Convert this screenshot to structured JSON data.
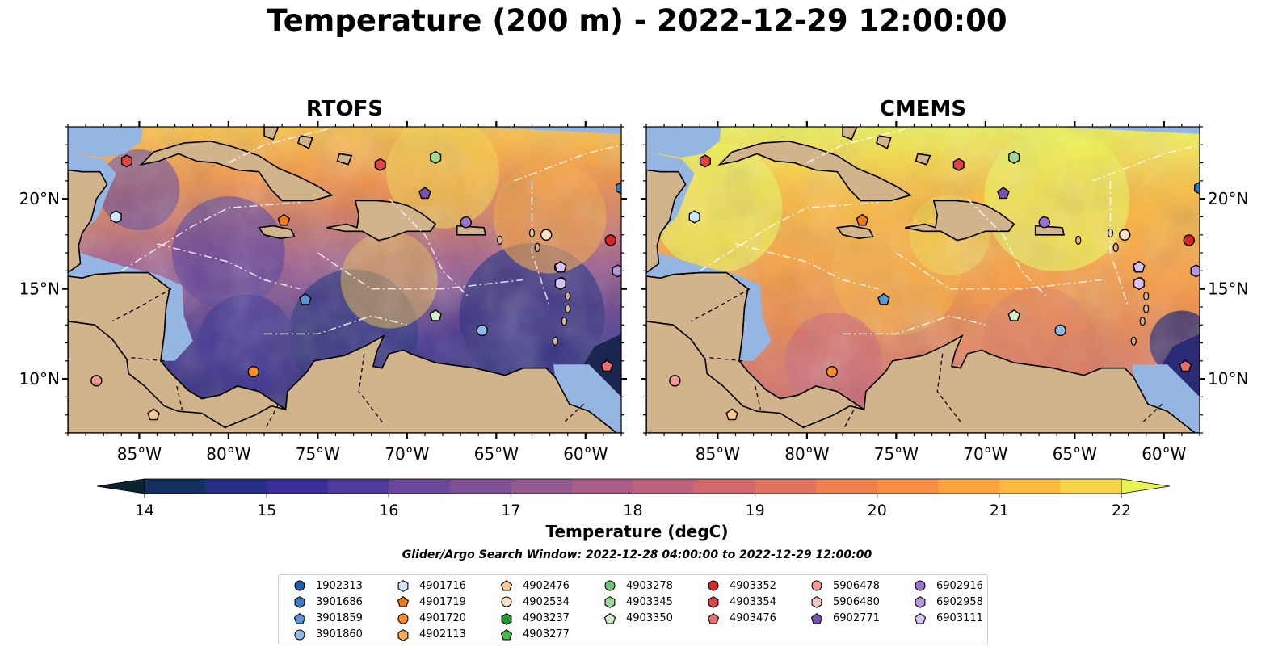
{
  "title": "Temperature (200 m) - 2022-12-29 12:00:00",
  "panels": [
    {
      "id": "rtofs",
      "title": "RTOFS"
    },
    {
      "id": "cmems",
      "title": "CMEMS"
    }
  ],
  "map": {
    "lon_range": [
      -89,
      -58
    ],
    "lat_range": [
      7,
      24
    ],
    "lon_ticks": [
      {
        "value": -85,
        "label": "85°W"
      },
      {
        "value": -80,
        "label": "80°W"
      },
      {
        "value": -75,
        "label": "75°W"
      },
      {
        "value": -70,
        "label": "70°W"
      },
      {
        "value": -65,
        "label": "65°W"
      },
      {
        "value": -60,
        "label": "60°W"
      }
    ],
    "lat_ticks": [
      {
        "value": 20,
        "label": "20°N"
      },
      {
        "value": 15,
        "label": "15°N"
      },
      {
        "value": 10,
        "label": "10°N"
      }
    ],
    "colors": {
      "land": "#d2b48c",
      "shelf": "#95b6e3",
      "cold": "#0b1d2e",
      "warm": "#f8a840",
      "hot": "#e8f550",
      "mid": "#6a4a9a"
    }
  },
  "colorbar": {
    "min": 14,
    "max": 22,
    "step": 0.5,
    "ticks": [
      {
        "value": 14,
        "label": "14"
      },
      {
        "value": 15,
        "label": "15"
      },
      {
        "value": 16,
        "label": "16"
      },
      {
        "value": 17,
        "label": "17"
      },
      {
        "value": 18,
        "label": "18"
      },
      {
        "value": 19,
        "label": "19"
      },
      {
        "value": 20,
        "label": "20"
      },
      {
        "value": 21,
        "label": "21"
      },
      {
        "value": 22,
        "label": "22"
      }
    ],
    "colors": [
      "#0b2233",
      "#13305e",
      "#252f86",
      "#3c2e99",
      "#513b9a",
      "#6a4799",
      "#7e5197",
      "#935a92",
      "#a85e87",
      "#bd637b",
      "#d0686c",
      "#e07260",
      "#ee7f4f",
      "#f88f45",
      "#fba43e",
      "#fbba3f",
      "#f6d549",
      "#e8f550"
    ],
    "label": "Temperature (degC)"
  },
  "search_window": "Glider/Argo Search Window: 2022-12-28 04:00:00 to 2022-12-29 12:00:00",
  "legend": [
    {
      "id": "1902313",
      "shape": "circle",
      "color": "#1f5fa8"
    },
    {
      "id": "3901686",
      "shape": "hexagon",
      "color": "#3a7cc6"
    },
    {
      "id": "3901859",
      "shape": "pentagon",
      "color": "#5b96d6"
    },
    {
      "id": "3901860",
      "shape": "circle",
      "color": "#8fbbea"
    },
    {
      "id": "4901716",
      "shape": "hexagon",
      "color": "#cfe4f7"
    },
    {
      "id": "4901719",
      "shape": "pentagon",
      "color": "#f07a10"
    },
    {
      "id": "4901720",
      "shape": "circle",
      "color": "#f68f2a"
    },
    {
      "id": "4902113",
      "shape": "hexagon",
      "color": "#f9ab5d"
    },
    {
      "id": "4902476",
      "shape": "pentagon",
      "color": "#fbc98f"
    },
    {
      "id": "4902534",
      "shape": "circle",
      "color": "#fde2c6"
    },
    {
      "id": "4903237",
      "shape": "hexagon",
      "color": "#1f9a2a"
    },
    {
      "id": "4903277",
      "shape": "pentagon",
      "color": "#4cb84c"
    },
    {
      "id": "4903278",
      "shape": "circle",
      "color": "#74c476"
    },
    {
      "id": "4903345",
      "shape": "hexagon",
      "color": "#a1d99b"
    },
    {
      "id": "4903350",
      "shape": "pentagon",
      "color": "#d2f0c8"
    },
    {
      "id": "4903352",
      "shape": "circle",
      "color": "#d62728"
    },
    {
      "id": "4903354",
      "shape": "hexagon",
      "color": "#e04546"
    },
    {
      "id": "4903476",
      "shape": "pentagon",
      "color": "#ea6d6b"
    },
    {
      "id": "5906478",
      "shape": "circle",
      "color": "#f19a98"
    },
    {
      "id": "5906480",
      "shape": "hexagon",
      "color": "#f8c8c6"
    },
    {
      "id": "6902771",
      "shape": "pentagon",
      "color": "#7a52b3"
    },
    {
      "id": "6902916",
      "shape": "circle",
      "color": "#9a72cf"
    },
    {
      "id": "6902958",
      "shape": "hexagon",
      "color": "#b797df"
    },
    {
      "id": "6903111",
      "shape": "pentagon",
      "color": "#d8c2f0"
    }
  ],
  "floats": [
    {
      "lon": -85.7,
      "lat": 22.1,
      "shape": "hexagon",
      "color": "#e04546"
    },
    {
      "lon": -86.3,
      "lat": 19.0,
      "shape": "hexagon",
      "color": "#cfe4f7"
    },
    {
      "lon": -76.9,
      "lat": 18.8,
      "shape": "pentagon",
      "color": "#f07a10"
    },
    {
      "lon": -71.5,
      "lat": 21.9,
      "shape": "hexagon",
      "color": "#e04546"
    },
    {
      "lon": -68.4,
      "lat": 22.3,
      "shape": "hexagon",
      "color": "#a1d99b"
    },
    {
      "lon": -69.0,
      "lat": 20.3,
      "shape": "pentagon",
      "color": "#7a52b3"
    },
    {
      "lon": -66.7,
      "lat": 18.7,
      "shape": "circle",
      "color": "#9a72cf"
    },
    {
      "lon": -62.2,
      "lat": 18.0,
      "shape": "circle",
      "color": "#fde2c6"
    },
    {
      "lon": -61.4,
      "lat": 16.2,
      "shape": "pentagon",
      "color": "#d8c2f0"
    },
    {
      "lon": -61.4,
      "lat": 15.3,
      "shape": "hexagon",
      "color": "#d8c2f0"
    },
    {
      "lon": -58.6,
      "lat": 17.7,
      "shape": "circle",
      "color": "#d62728"
    },
    {
      "lon": -58.2,
      "lat": 16.0,
      "shape": "hexagon",
      "color": "#b797df"
    },
    {
      "lon": -58.0,
      "lat": 20.6,
      "shape": "hexagon",
      "color": "#3a7cc6"
    },
    {
      "lon": -75.7,
      "lat": 14.4,
      "shape": "pentagon",
      "color": "#5b96d6"
    },
    {
      "lon": -68.4,
      "lat": 13.5,
      "shape": "pentagon",
      "color": "#d2f0c8"
    },
    {
      "lon": -65.8,
      "lat": 12.7,
      "shape": "circle",
      "color": "#8fbbea"
    },
    {
      "lon": -78.6,
      "lat": 10.4,
      "shape": "circle",
      "color": "#f68f2a"
    },
    {
      "lon": -58.8,
      "lat": 10.7,
      "shape": "pentagon",
      "color": "#ea6d6b"
    },
    {
      "lon": -87.4,
      "lat": 9.9,
      "shape": "circle",
      "color": "#f19a98"
    },
    {
      "lon": -84.2,
      "lat": 8.0,
      "shape": "pentagon",
      "color": "#fbc98f"
    }
  ]
}
